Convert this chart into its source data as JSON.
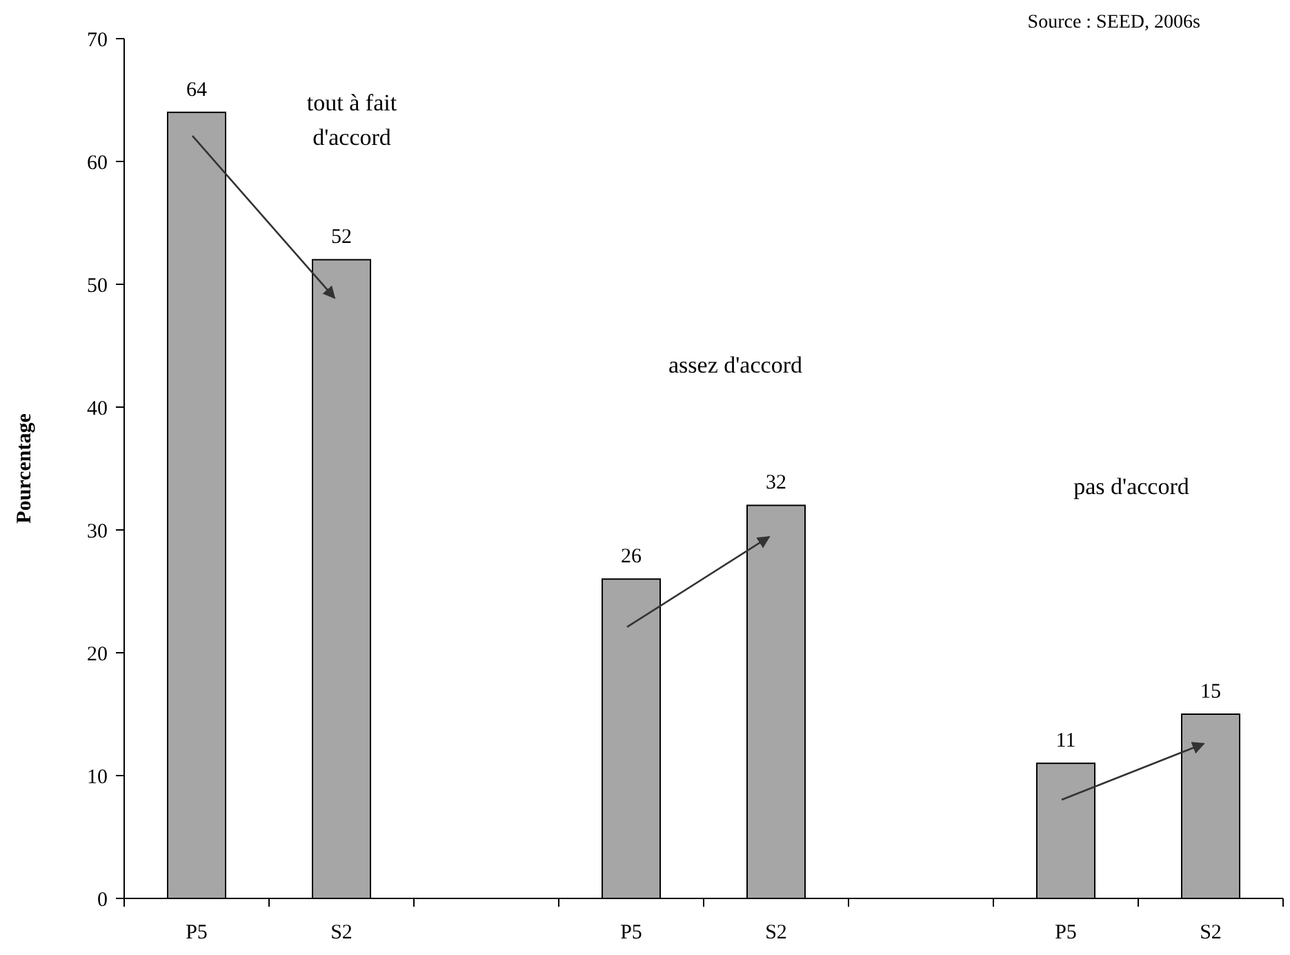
{
  "chart_data": {
    "type": "bar",
    "categories": [
      "P5",
      "S2",
      null,
      "P5",
      "S2",
      null,
      "P5",
      "S2"
    ],
    "values": [
      64,
      52,
      null,
      26,
      32,
      null,
      11,
      15
    ],
    "color": "#a6a6a6",
    "ylabel": "Pourcentage",
    "ylim": [
      0,
      70
    ],
    "yticks": [
      0,
      10,
      20,
      30,
      40,
      50,
      60,
      70
    ],
    "data_labels": true,
    "annotations": [
      "tout à fait\nd'accord",
      "assez d'accord",
      "pas d'accord",
      "Source : SEED, 2006s"
    ]
  }
}
